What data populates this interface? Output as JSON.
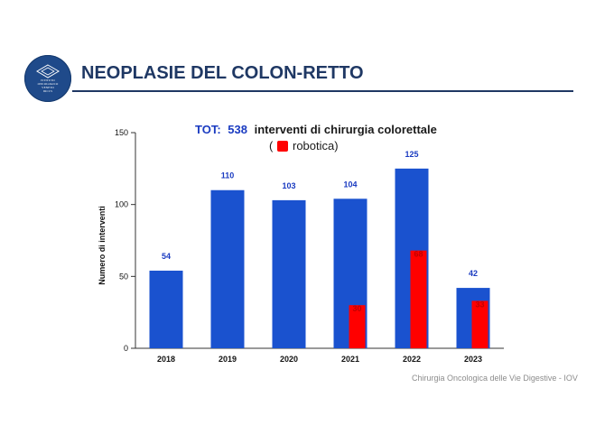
{
  "slide": {
    "title": "NEOPLASIE DEL COLON-RETTO",
    "footer": "Chirurgia Oncologica delle Vie Digestive - IOV",
    "logo_lines": [
      "ISTITUTO",
      "ONCOLOGICO",
      "VENETO",
      "IRCCS"
    ]
  },
  "colors": {
    "primary": "#1a52cf",
    "robotic": "#ff0000",
    "title": "#1f3864",
    "tot_label": "#1a3bc1"
  },
  "chart_data": {
    "type": "bar",
    "title_prefix": "TOT:",
    "title_total": "538",
    "title_suffix": "interventi di chirurgia colorettale",
    "legend_open": "(",
    "legend_label": "robotica)",
    "ylabel": "Numero di interventi",
    "xlabel": "",
    "ylim": [
      0,
      150
    ],
    "yticks": [
      0,
      50,
      100,
      150
    ],
    "categories": [
      "2018",
      "2019",
      "2020",
      "2021",
      "2022",
      "2023"
    ],
    "series": [
      {
        "values": [
          54,
          110,
          103,
          104,
          125,
          42
        ],
        "color": "#1a52cf"
      },
      {
        "name": "robotica",
        "values": [
          null,
          null,
          null,
          30,
          68,
          33
        ],
        "color": "#ff0000"
      }
    ],
    "data_labels": [
      "54",
      "110",
      "103",
      "104",
      "125",
      "42"
    ],
    "robotic_labels": [
      "",
      "",
      "",
      "30",
      "68",
      "33"
    ]
  }
}
